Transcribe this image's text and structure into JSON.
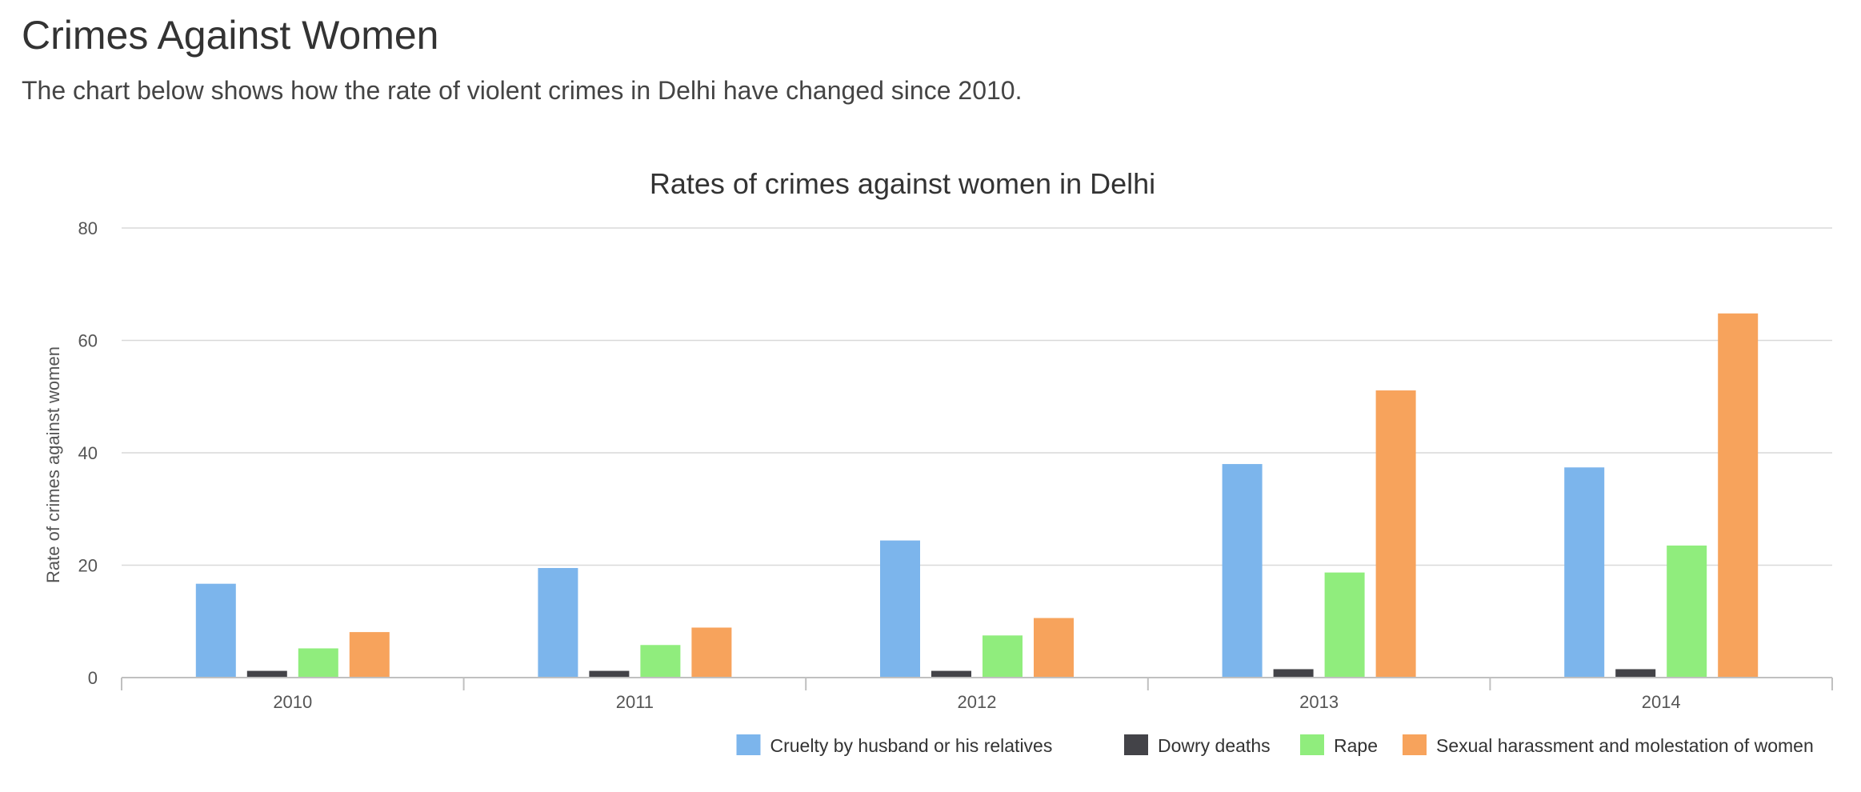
{
  "page": {
    "title": "Crimes Against Women",
    "subtitle": "The chart below shows how the rate of violent crimes in Delhi have changed since 2010."
  },
  "chart_data": {
    "type": "bar",
    "title": "Rates of crimes against women in Delhi",
    "xlabel": "",
    "ylabel": "Rate of crimes against women",
    "ylim": [
      0,
      80
    ],
    "yticks": [
      0,
      20,
      40,
      60,
      80
    ],
    "grid": true,
    "legend_position": "bottom-right",
    "categories": [
      "2010",
      "2011",
      "2012",
      "2013",
      "2014"
    ],
    "series": [
      {
        "name": "Cruelty by husband or his relatives",
        "color": "#7cb5ec",
        "values": [
          16.7,
          19.5,
          24.4,
          38.0,
          37.4
        ]
      },
      {
        "name": "Dowry deaths",
        "color": "#434348",
        "values": [
          1.2,
          1.2,
          1.2,
          1.5,
          1.5
        ]
      },
      {
        "name": "Rape",
        "color": "#90ed7d",
        "values": [
          5.2,
          5.8,
          7.5,
          18.7,
          23.5
        ]
      },
      {
        "name": "Sexual harassment and molestation of women",
        "color": "#f7a35c",
        "values": [
          8.1,
          8.9,
          10.6,
          51.1,
          64.8
        ]
      }
    ]
  }
}
